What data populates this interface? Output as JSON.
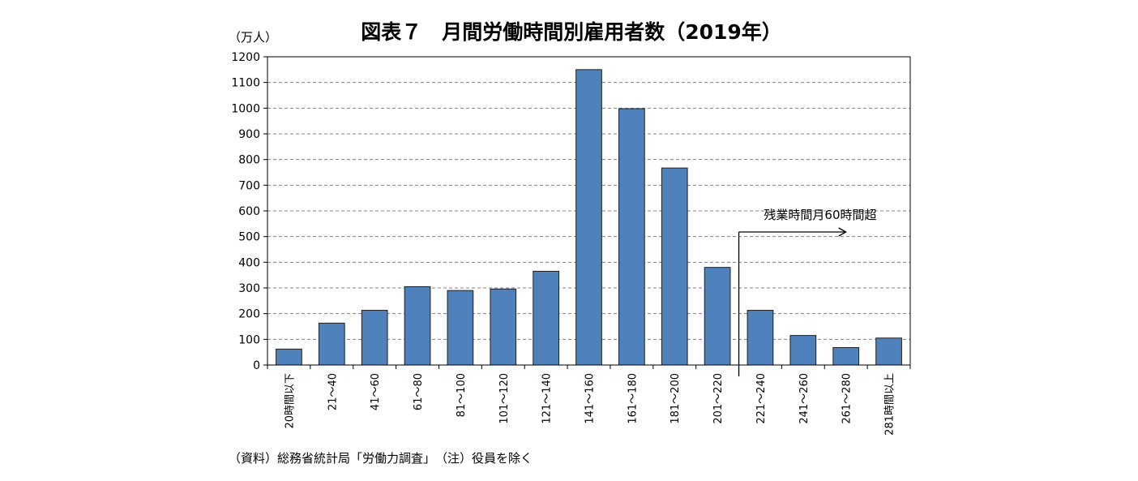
{
  "chart_data": {
    "type": "bar",
    "title": "図表７　月間労働時間別雇用者数（2019年）",
    "ylabel": "（万人）",
    "xlabel": "",
    "ylim": [
      0,
      1200
    ],
    "yticks": [
      0,
      100,
      200,
      300,
      400,
      500,
      600,
      700,
      800,
      900,
      1000,
      1100,
      1200
    ],
    "grid": true,
    "categories": [
      "20時間以下",
      "21～40",
      "41～60",
      "61～80",
      "81～100",
      "101～120",
      "121～140",
      "141～160",
      "161～180",
      "181～200",
      "201～220",
      "221～240",
      "241～260",
      "261～280",
      "281時間以上"
    ],
    "values": [
      62,
      163,
      213,
      305,
      290,
      296,
      365,
      1150,
      998,
      767,
      380,
      213,
      115,
      68,
      105
    ],
    "bar_color": "#4F81BD",
    "annotation": {
      "text": "残業時間月60時間超",
      "between_categories": [
        "201～220",
        "221～240"
      ]
    },
    "source_note": "（資料）総務省統計局「労働力調査」　（注）役員を除く"
  }
}
